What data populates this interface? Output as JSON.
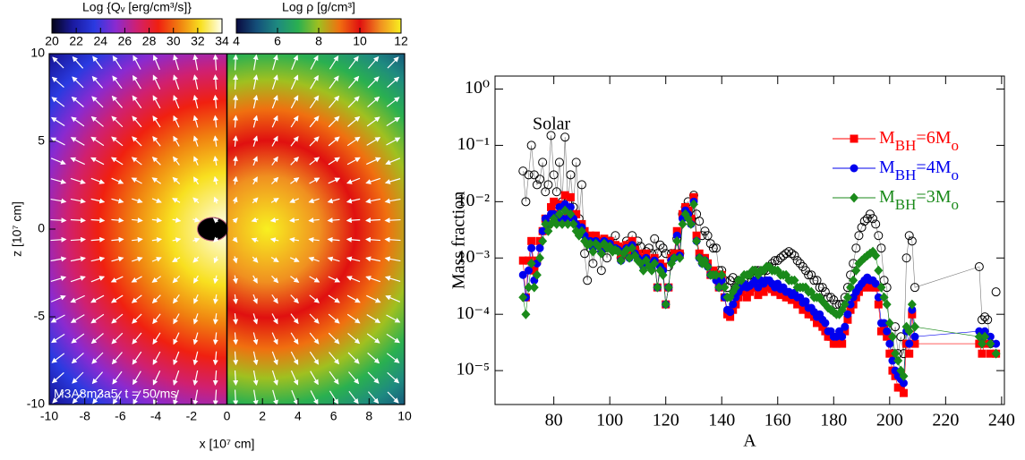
{
  "chart_data": [
    {
      "type": "map",
      "xlabel": "x [10⁷ cm]",
      "ylabel": "z [10⁷ cm]",
      "xlim": [
        -10,
        10
      ],
      "ylim": [
        -10,
        10
      ],
      "xticks": [
        -10,
        -8,
        -6,
        -4,
        -2,
        0,
        2,
        4,
        6,
        8,
        10
      ],
      "yticks": [
        -10,
        -5,
        0,
        5,
        10
      ],
      "annotation": "M3A8m3a5, t = 50 ms",
      "colorbars": [
        {
          "title": "Log {Qᵥ [erg/cm³/s]}",
          "lim": [
            20,
            34
          ],
          "ticks": [
            20,
            22,
            24,
            26,
            28,
            30,
            32,
            34
          ],
          "colors": [
            "#05051a",
            "#1a1aa0",
            "#2a3ae0",
            "#8a2ad0",
            "#d02070",
            "#f02010",
            "#f08010",
            "#f8e020",
            "#fffff0"
          ]
        },
        {
          "title": "Log ρ [g/cm³]",
          "lim": [
            4,
            12
          ],
          "ticks": [
            4,
            6,
            8,
            10,
            12
          ],
          "colors": [
            "#0a0a40",
            "#14507a",
            "#1e8a80",
            "#2ab050",
            "#a0c020",
            "#f07010",
            "#e01010",
            "#f09020",
            "#f8f020"
          ]
        }
      ]
    },
    {
      "type": "scatter",
      "xlabel": "A",
      "ylabel": "Mass fraction",
      "log_y": true,
      "xlim": [
        59,
        241
      ],
      "ylim": [
        2.5e-06,
        1.7
      ],
      "xticks": [
        80,
        100,
        120,
        140,
        160,
        180,
        200,
        220,
        240
      ],
      "yticks": [
        {
          "value": 1e-05,
          "label": "10⁻⁵"
        },
        {
          "value": 0.0001,
          "label": "10⁻⁴"
        },
        {
          "value": 0.001,
          "label": "10⁻³"
        },
        {
          "value": 0.01,
          "label": "10⁻²"
        },
        {
          "value": 0.1,
          "label": "10⁻¹"
        },
        {
          "value": 1,
          "label": "10⁰"
        }
      ],
      "x": [
        69,
        70,
        71,
        72,
        73,
        74,
        75,
        76,
        77,
        78,
        79,
        80,
        81,
        82,
        83,
        84,
        85,
        86,
        87,
        88,
        89,
        90,
        91,
        92,
        93,
        94,
        95,
        96,
        97,
        98,
        99,
        100,
        101,
        102,
        103,
        104,
        105,
        106,
        107,
        108,
        109,
        110,
        111,
        112,
        113,
        114,
        115,
        116,
        117,
        118,
        119,
        120,
        121,
        122,
        123,
        124,
        125,
        126,
        127,
        128,
        129,
        130,
        131,
        132,
        133,
        134,
        135,
        136,
        137,
        138,
        139,
        140,
        141,
        142,
        143,
        144,
        145,
        146,
        147,
        148,
        149,
        150,
        151,
        152,
        153,
        154,
        155,
        156,
        157,
        158,
        159,
        160,
        161,
        162,
        163,
        164,
        165,
        166,
        167,
        168,
        169,
        170,
        171,
        172,
        173,
        174,
        175,
        176,
        177,
        178,
        179,
        180,
        181,
        182,
        183,
        184,
        185,
        186,
        187,
        188,
        189,
        190,
        191,
        192,
        193,
        194,
        195,
        196,
        197,
        198,
        199,
        200,
        201,
        202,
        203,
        204,
        205,
        206,
        207,
        208,
        209,
        232,
        233,
        234,
        235,
        236,
        237,
        238
      ],
      "series": [
        {
          "name": "Solar",
          "color": "#000000",
          "marker": "open-circle",
          "values": [
            0.035,
            0.01,
            0.03,
            0.1,
            0.03,
            0.02,
            0.025,
            0.05,
            0.015,
            0.02,
            0.15,
            0.03,
            0.015,
            0.05,
            0.01,
            0.14,
            0.01,
            0.03,
            0.008,
            0.05,
            0.005,
            0.02,
            0.0012,
            0.0004,
            0.0015,
            0.0008,
            0.0015,
            0.002,
            0.0006,
            0.0015,
            0.001,
            0.002,
            0.0015,
            0.0025,
            0.0015,
            0.001,
            0.0015,
            0.002,
            0.0018,
            0.0025,
            0.0015,
            0.002,
            0.0016,
            0.0011,
            0.0013,
            0.0015,
            0.0012,
            0.0022,
            0.0012,
            0.0017,
            0.0015,
            0.0012,
            0.0007,
            0.0012,
            0.0012,
            0.0022,
            0.0012,
            0.006,
            0.008,
            0.01,
            0.005,
            0.013,
            0.006,
            0.0045,
            0.0025,
            0.003,
            0.0025,
            0.0018,
            0.0015,
            0.0015,
            0.0006,
            0.0006,
            0.0004,
            0.0003,
            0.0004,
            0.00045,
            0.0003,
            0.0004,
            0.00035,
            0.0004,
            0.0004,
            0.0005,
            0.0005,
            0.0006,
            0.0006,
            0.0005,
            0.0006,
            0.0006,
            0.0007,
            0.0008,
            0.0009,
            0.0009,
            0.001,
            0.0011,
            0.0012,
            0.0013,
            0.0012,
            0.0011,
            0.0009,
            0.0008,
            0.0007,
            0.0006,
            0.0005,
            0.0005,
            0.0004,
            0.0004,
            0.0003,
            0.0003,
            0.00025,
            0.0002,
            0.0002,
            0.00018,
            0.00015,
            0.00015,
            0.00015,
            0.0002,
            0.0003,
            0.0005,
            0.0008,
            0.0015,
            0.0025,
            0.0035,
            0.0045,
            0.005,
            0.006,
            0.005,
            0.004,
            0.0025,
            0.0015,
            0.0004,
            0.0003,
            4e-05,
            2e-05,
            6e-05,
            2e-05,
            4e-05,
            2e-05,
            0.001,
            0.0025,
            0.002,
            0.0003,
            0.0007,
            8e-05,
            9e-05,
            8e-05,
            3e-05,
            null,
            0.00025
          ]
        },
        {
          "name": "MBH=6Mo",
          "color": "#ff0000",
          "marker": "square",
          "values": [
            0.0009,
            0.0002,
            0.0009,
            0.002,
            0.0006,
            0.0009,
            0.002,
            0.003,
            0.005,
            0.004,
            0.008,
            0.01,
            0.006,
            0.009,
            0.005,
            0.013,
            0.006,
            0.012,
            0.006,
            0.006,
            0.003,
            0.004,
            0.003,
            0.002,
            0.0025,
            0.0018,
            0.0025,
            0.002,
            0.0015,
            0.0022,
            0.0018,
            0.002,
            0.0015,
            0.0017,
            0.0016,
            0.001,
            0.0015,
            0.0017,
            0.0012,
            0.002,
            0.0014,
            0.0012,
            0.001,
            0.0008,
            0.0012,
            0.0009,
            0.0008,
            0.001,
            0.0003,
            0.0008,
            0.0007,
            0.00015,
            0.0003,
            0.001,
            0.0012,
            0.003,
            0.0012,
            0.006,
            0.008,
            0.007,
            0.005,
            0.012,
            0.0025,
            0.0012,
            0.0009,
            0.001,
            0.0008,
            0.0005,
            0.0006,
            0.0005,
            0.0003,
            0.0005,
            0.0002,
            0.0001,
            9e-05,
            0.00012,
            0.00015,
            0.0002,
            0.00025,
            0.0003,
            0.0002,
            0.00025,
            0.0003,
            0.0003,
            0.00022,
            0.0003,
            0.00025,
            0.0003,
            0.0003,
            0.00028,
            0.00025,
            0.00028,
            0.00022,
            0.00025,
            0.0002,
            0.0002,
            0.00018,
            0.00019,
            0.00015,
            0.00016,
            0.00012,
            0.00013,
            0.0001,
            0.0001,
            9e-05,
            7e-05,
            8e-05,
            6e-05,
            5e-05,
            4e-05,
            4e-05,
            3e-05,
            3e-05,
            4e-05,
            3e-05,
            5e-05,
            8e-05,
            0.00012,
            0.00015,
            0.0002,
            0.00025,
            0.0003,
            0.0003,
            0.00035,
            0.0003,
            0.0003,
            0.0003,
            0.00015,
            5e-05,
            6e-05,
            4e-05,
            2e-05,
            1e-05,
            8e-06,
            5e-06,
            5e-06,
            4e-06,
            3e-05,
            2e-05,
            0.0001,
            3e-05,
            3e-05,
            2e-05,
            3e-05,
            null,
            2e-05,
            null,
            2e-05
          ]
        },
        {
          "name": "MBH=4Mo",
          "color": "#0000ee",
          "marker": "circle",
          "values": [
            0.0005,
            0.0002,
            0.0006,
            0.0015,
            0.0004,
            0.0008,
            0.0015,
            0.003,
            0.005,
            0.004,
            0.006,
            0.006,
            0.005,
            0.008,
            0.005,
            0.009,
            0.005,
            0.008,
            0.005,
            0.004,
            0.003,
            0.0035,
            0.0025,
            0.002,
            0.002,
            0.0015,
            0.002,
            0.0018,
            0.0013,
            0.002,
            0.0016,
            0.0018,
            0.0014,
            0.0015,
            0.0014,
            0.0009,
            0.0013,
            0.0015,
            0.001,
            0.0017,
            0.0012,
            0.001,
            0.0009,
            0.0007,
            0.001,
            0.0008,
            0.0007,
            0.0009,
            0.0003,
            0.0007,
            0.0006,
            0.00015,
            0.0003,
            0.0009,
            0.001,
            0.0025,
            0.0011,
            0.005,
            0.007,
            0.006,
            0.004,
            0.01,
            0.002,
            0.001,
            0.0008,
            0.0009,
            0.0007,
            0.0005,
            0.0005,
            0.0004,
            0.0003,
            0.0004,
            0.0002,
            0.00012,
            0.00011,
            0.00015,
            0.0002,
            0.00025,
            0.0003,
            0.00035,
            0.0003,
            0.00032,
            0.00035,
            0.0004,
            0.0003,
            0.0004,
            0.00035,
            0.0004,
            0.0004,
            0.00035,
            0.0003,
            0.00035,
            0.00028,
            0.0003,
            0.00025,
            0.00025,
            0.00022,
            0.00024,
            0.0002,
            0.0002,
            0.00016,
            0.00017,
            0.00013,
            0.00013,
            0.00011,
            9e-05,
            0.0001,
            8e-05,
            7e-05,
            5e-05,
            5e-05,
            4e-05,
            4e-05,
            5e-05,
            4e-05,
            6e-05,
            0.0001,
            0.00015,
            0.0002,
            0.00025,
            0.0003,
            0.00035,
            0.0004,
            0.00045,
            0.0004,
            0.0004,
            0.00035,
            0.0002,
            7e-05,
            7e-05,
            5e-05,
            3e-05,
            1.5e-05,
            1e-05,
            8e-06,
            7e-06,
            6e-06,
            5e-05,
            3e-05,
            0.00012,
            4e-05,
            5e-05,
            4e-05,
            5e-05,
            null,
            4e-05,
            null,
            3e-05
          ]
        },
        {
          "name": "MBH=3Mo",
          "color": "#1a8a1a",
          "marker": "diamond",
          "values": [
            0.0002,
            0.0001,
            0.0003,
            0.0008,
            0.0003,
            0.0005,
            0.001,
            0.002,
            0.004,
            0.003,
            0.004,
            0.005,
            0.004,
            0.006,
            0.004,
            0.007,
            0.004,
            0.006,
            0.004,
            0.003,
            0.0025,
            0.003,
            0.002,
            0.0017,
            0.0018,
            0.0013,
            0.0018,
            0.0016,
            0.0012,
            0.0018,
            0.0015,
            0.0016,
            0.0013,
            0.0014,
            0.0013,
            0.0009,
            0.0012,
            0.0014,
            0.001,
            0.0015,
            0.0011,
            0.0009,
            0.0008,
            0.0006,
            0.0009,
            0.0007,
            0.0006,
            0.0008,
            0.0003,
            0.0006,
            0.0005,
            0.00015,
            0.0003,
            0.0008,
            0.001,
            0.002,
            0.001,
            0.004,
            0.006,
            0.005,
            0.004,
            0.009,
            0.002,
            0.001,
            0.0008,
            0.0009,
            0.0007,
            0.0005,
            0.0005,
            0.0005,
            0.0003,
            0.0005,
            0.0003,
            0.0002,
            0.0002,
            0.00025,
            0.0003,
            0.0004,
            0.0004,
            0.0005,
            0.0005,
            0.0005,
            0.0006,
            0.0006,
            0.0005,
            0.0006,
            0.0006,
            0.0007,
            0.0007,
            0.0006,
            0.0006,
            0.0006,
            0.0005,
            0.0005,
            0.0005,
            0.0004,
            0.0004,
            0.0004,
            0.0003,
            0.0003,
            0.0003,
            0.0003,
            0.00025,
            0.00025,
            0.0002,
            0.0002,
            0.0002,
            0.00017,
            0.00015,
            0.00013,
            0.00012,
            0.00011,
            0.0001,
            0.0001,
            0.00012,
            0.00015,
            0.0002,
            0.0003,
            0.0004,
            0.0006,
            0.0008,
            0.0009,
            0.001,
            0.0011,
            0.0012,
            0.0013,
            0.0011,
            0.0006,
            0.0003,
            0.0002,
            0.00015,
            7e-05,
            4e-05,
            2e-05,
            1.5e-05,
            1e-05,
            8e-06,
            6e-05,
            5e-05,
            0.00015,
            6e-05,
            4e-05,
            3e-05,
            4e-05,
            null,
            3e-05,
            null,
            2e-05
          ]
        }
      ]
    }
  ]
}
